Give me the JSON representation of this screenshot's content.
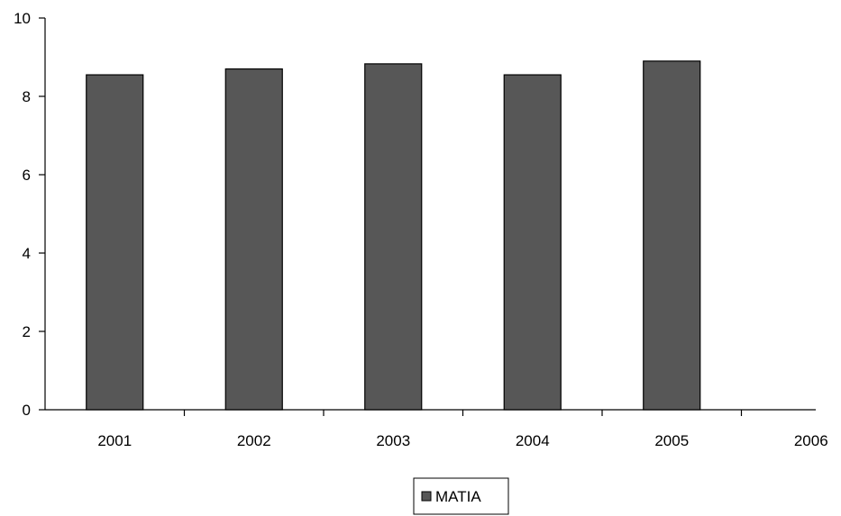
{
  "chart_data": {
    "type": "bar",
    "categories": [
      "2001",
      "2002",
      "2003",
      "2004",
      "2005",
      "2006"
    ],
    "series": [
      {
        "name": "MATIA",
        "values": [
          8.55,
          8.7,
          8.83,
          8.55,
          8.9,
          null
        ],
        "color": "#575757"
      }
    ],
    "title": "",
    "xlabel": "",
    "ylabel": "",
    "ylim": [
      0,
      10
    ],
    "yticks": [
      "0",
      "2",
      "4",
      "6",
      "8",
      "10"
    ],
    "grid": false,
    "legend_position": "bottom"
  }
}
